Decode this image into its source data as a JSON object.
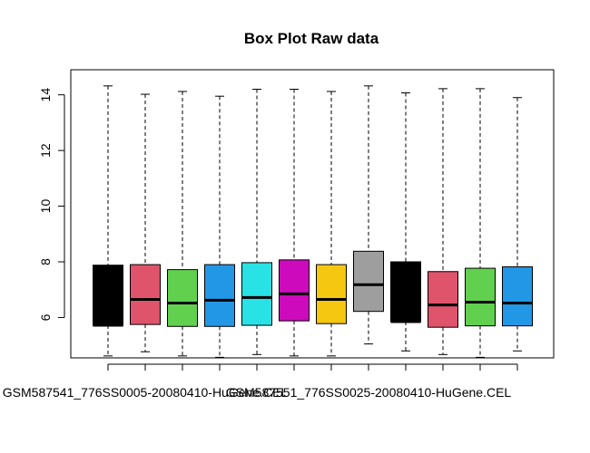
{
  "chart_data": {
    "type": "boxplot",
    "title": "Box Plot Raw data",
    "xlabel": "",
    "ylabel": "",
    "ylim": [
      4.55,
      14.9
    ],
    "y_ticks": [
      6,
      8,
      10,
      12,
      14
    ],
    "x_tick_labels": [
      {
        "index": 1,
        "text": "GSM587541_776SS0005-20080410-HuGene.CEL"
      },
      {
        "index": 7,
        "text": "GSM587551_776SS0025-20080410-HuGene.CEL"
      }
    ],
    "grid": false,
    "legend": "none",
    "boxes": [
      {
        "color": "#000000",
        "min": 4.62,
        "q1": 5.72,
        "median": 5.72,
        "q3": 7.88,
        "max": 14.32
      },
      {
        "color": "#DF536B",
        "min": 4.77,
        "q1": 5.75,
        "median": 6.65,
        "q3": 7.9,
        "max": 14.02
      },
      {
        "color": "#61D04F",
        "min": 4.62,
        "q1": 5.68,
        "median": 6.52,
        "q3": 7.72,
        "max": 14.12
      },
      {
        "color": "#2297E6",
        "min": 4.57,
        "q1": 5.68,
        "median": 6.62,
        "q3": 7.9,
        "max": 13.95
      },
      {
        "color": "#28E2E5",
        "min": 4.67,
        "q1": 5.72,
        "median": 6.72,
        "q3": 7.97,
        "max": 14.2
      },
      {
        "color": "#CD0BBC",
        "min": 4.62,
        "q1": 5.88,
        "median": 6.85,
        "q3": 8.07,
        "max": 14.2
      },
      {
        "color": "#F5C710",
        "min": 4.62,
        "q1": 5.78,
        "median": 6.65,
        "q3": 7.9,
        "max": 14.12
      },
      {
        "color": "#9E9E9E",
        "min": 5.05,
        "q1": 6.22,
        "median": 7.18,
        "q3": 8.38,
        "max": 14.32
      },
      {
        "color": "#000000",
        "min": 4.8,
        "q1": 5.85,
        "median": 5.85,
        "q3": 8.0,
        "max": 14.07
      },
      {
        "color": "#DF536B",
        "min": 4.67,
        "q1": 5.65,
        "median": 6.45,
        "q3": 7.65,
        "max": 14.22
      },
      {
        "color": "#61D04F",
        "min": 4.57,
        "q1": 5.7,
        "median": 6.55,
        "q3": 7.77,
        "max": 14.22
      },
      {
        "color": "#2297E6",
        "min": 4.8,
        "q1": 5.7,
        "median": 6.52,
        "q3": 7.82,
        "max": 13.9
      }
    ]
  }
}
